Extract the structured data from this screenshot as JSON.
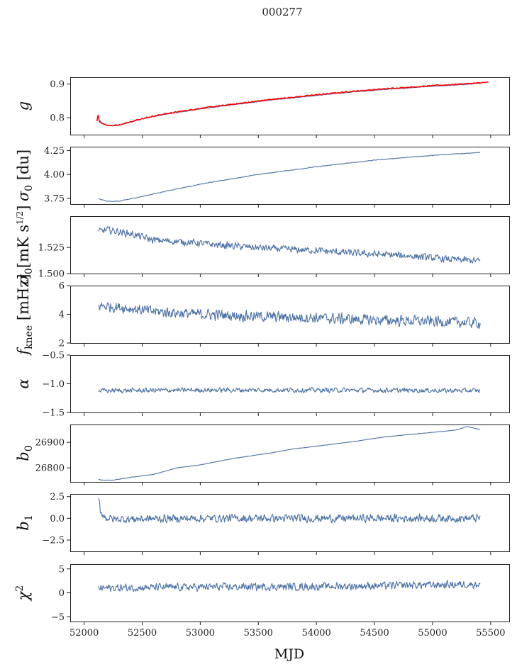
{
  "figure_title": "000277",
  "chart_data": {
    "type": "line",
    "title": "000277",
    "xlabel": "MJD",
    "xlim": [
      51880,
      55660
    ],
    "xticks": [
      52000,
      52500,
      53000,
      53500,
      54000,
      54500,
      55000,
      55500
    ],
    "xtick_labels": [
      "52000",
      "52500",
      "53000",
      "53500",
      "54000",
      "54500",
      "55000",
      "55500"
    ],
    "x_start": 52125,
    "x_end": 55410,
    "line_color": "#4c72a4",
    "overlay_color": "#ff0000",
    "panels": [
      {
        "id": "g",
        "ylabel": "g",
        "ylim": [
          0.75,
          0.92
        ],
        "yticks": [
          0.8,
          0.9
        ],
        "ytick_labels": [
          "0.8",
          "0.9"
        ],
        "series": [
          {
            "name": "g",
            "x": [
              52125,
              52150,
              52200,
              52250,
              52300,
              52400,
              52500,
              52700,
              53000,
              53300,
              53600,
              54000,
              54300,
              54600,
              55000,
              55300,
              55410
            ],
            "y": [
              0.795,
              0.785,
              0.777,
              0.776,
              0.778,
              0.787,
              0.797,
              0.81,
              0.826,
              0.839,
              0.852,
              0.866,
              0.876,
              0.884,
              0.893,
              0.899,
              0.902
            ],
            "noise": 0.001
          },
          {
            "name": "g (red overlay)",
            "x": [
              52110,
              52120,
              52130,
              52150,
              52200,
              52250,
              52300,
              52400,
              52500,
              52700,
              53000,
              53300,
              53600,
              54000,
              54300,
              54600,
              55000,
              55300,
              55480
            ],
            "y": [
              0.79,
              0.81,
              0.79,
              0.784,
              0.778,
              0.777,
              0.779,
              0.788,
              0.798,
              0.812,
              0.828,
              0.841,
              0.854,
              0.868,
              0.878,
              0.886,
              0.895,
              0.901,
              0.905
            ],
            "noise": 0.002
          }
        ]
      },
      {
        "id": "sigma0_du",
        "ylabel": "σ0 [du]",
        "ylim": [
          3.69,
          4.29
        ],
        "yticks": [
          3.75,
          4.0,
          4.25
        ],
        "ytick_labels": [
          "3.75",
          "4.00",
          "4.25"
        ],
        "series": [
          {
            "name": "sigma0_du",
            "x": [
              52125,
              52200,
              52300,
              52500,
              52800,
              53100,
              53500,
              54000,
              54500,
              55000,
              55410
            ],
            "y": [
              3.745,
              3.72,
              3.72,
              3.77,
              3.85,
              3.92,
              4.0,
              4.08,
              4.15,
              4.2,
              4.23
            ],
            "noise": 0.004
          }
        ]
      },
      {
        "id": "sigma0_mK",
        "ylabel": "σ0[mK s^1/2]",
        "ylim": [
          1.5,
          1.555
        ],
        "yticks": [
          1.5,
          1.525
        ],
        "ytick_labels": [
          "1.500",
          "1.525"
        ],
        "series": [
          {
            "name": "sigma0_mK",
            "x": [
              52125,
              52200,
              52400,
              52600,
              52900,
              53200,
              53600,
              54000,
              54400,
              54800,
              55100,
              55410
            ],
            "y": [
              1.54,
              1.542,
              1.538,
              1.532,
              1.53,
              1.527,
              1.524,
              1.522,
              1.519,
              1.517,
              1.514,
              1.512
            ],
            "noise": 0.004
          }
        ]
      },
      {
        "id": "fknee",
        "ylabel": "fknee [mHz]",
        "ylim": [
          2,
          6
        ],
        "yticks": [
          2,
          4,
          6
        ],
        "ytick_labels": [
          "2",
          "4",
          "6"
        ],
        "series": [
          {
            "name": "fknee",
            "x": [
              52125,
              52300,
              52600,
              53000,
              53500,
              54000,
              54500,
              55000,
              55410
            ],
            "y": [
              4.6,
              4.5,
              4.2,
              4.0,
              3.85,
              3.75,
              3.6,
              3.5,
              3.4
            ],
            "noise": 0.45
          }
        ]
      },
      {
        "id": "alpha",
        "ylabel": "α",
        "ylim": [
          -1.5,
          -0.5
        ],
        "yticks": [
          -1.5,
          -1.0,
          -0.5
        ],
        "ytick_labels": [
          "−1.5",
          "−1.0",
          "−0.5"
        ],
        "series": [
          {
            "name": "alpha",
            "x": [
              52125,
              53000,
              54000,
              55410
            ],
            "y": [
              -1.12,
              -1.11,
              -1.11,
              -1.12
            ],
            "noise": 0.05
          }
        ]
      },
      {
        "id": "b0",
        "ylabel": "b0",
        "ylim": [
          26745,
          26970
        ],
        "yticks": [
          26800,
          26900
        ],
        "ytick_labels": [
          "26800",
          "26900"
        ],
        "series": [
          {
            "name": "b0",
            "x": [
              52125,
              52150,
              52250,
              52400,
              52600,
              52800,
              53000,
              53300,
              53600,
              53800,
              54000,
              54300,
              54600,
              54900,
              55200,
              55300,
              55410
            ],
            "y": [
              26755,
              26752,
              26752,
              26763,
              26775,
              26800,
              26812,
              26838,
              26858,
              26874,
              26885,
              26902,
              26922,
              26935,
              26948,
              26962,
              26950
            ],
            "noise": 0.9
          }
        ]
      },
      {
        "id": "b1",
        "ylabel": "b1",
        "ylim": [
          -3.8,
          2.8
        ],
        "yticks": [
          -2.5,
          0.0,
          2.5
        ],
        "ytick_labels": [
          "−2.5",
          "0.0",
          "2.5"
        ],
        "series": [
          {
            "name": "b1",
            "x": [
              52125,
              52140,
              52180,
              52250,
              53000,
              54000,
              55410
            ],
            "y": [
              2.3,
              0.8,
              0.1,
              -0.1,
              0.0,
              0.0,
              0.0
            ],
            "noise": 0.55
          }
        ]
      },
      {
        "id": "chi2",
        "ylabel": "χ2",
        "ylim": [
          -6,
          6
        ],
        "yticks": [
          -5,
          0,
          5
        ],
        "ytick_labels": [
          "−5",
          "0",
          "5"
        ],
        "series": [
          {
            "name": "chi2",
            "x": [
              52125,
              53000,
              54000,
              55410
            ],
            "y": [
              1.0,
              1.2,
              1.3,
              1.8
            ],
            "noise": 0.95
          }
        ]
      }
    ]
  }
}
